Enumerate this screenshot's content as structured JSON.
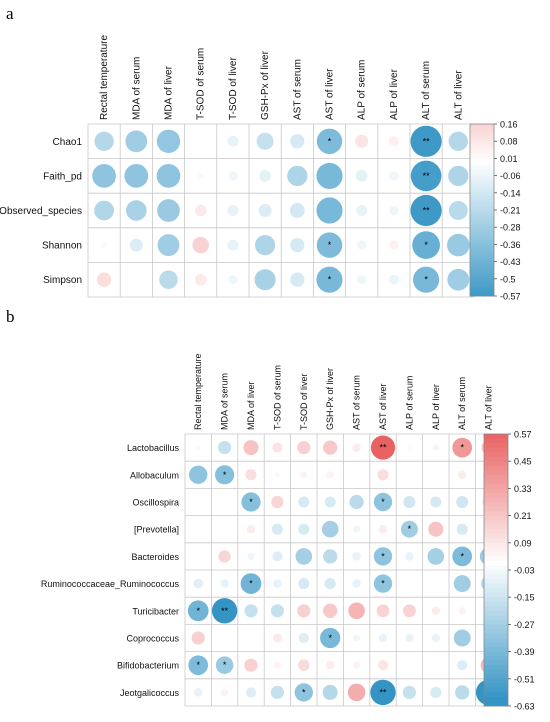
{
  "figure": {
    "panel_a_label": "a",
    "panel_b_label": "b"
  },
  "chart_data": [
    {
      "panel": "a",
      "type": "heatmap",
      "columns": [
        "Rectal temperature",
        "MDA of serum",
        "MDA of liver",
        "T-SOD of serum",
        "T-SOD of liver",
        "GSH-Px of liver",
        "AST of serum",
        "AST of liver",
        "ALP of serum",
        "ALP of liver",
        "ALT of serum",
        "ALT of liver"
      ],
      "rows": [
        "Chao1",
        "Faith_pd",
        "Observed_species",
        "Shannon",
        "Simpson"
      ],
      "values": [
        [
          -0.22,
          -0.28,
          -0.32,
          0.0,
          -0.07,
          -0.17,
          -0.12,
          -0.38,
          0.1,
          0.06,
          -0.57,
          -0.22
        ],
        [
          -0.33,
          -0.33,
          -0.33,
          -0.02,
          -0.05,
          -0.08,
          -0.24,
          -0.4,
          -0.08,
          -0.05,
          -0.55,
          -0.24
        ],
        [
          -0.23,
          -0.25,
          -0.3,
          0.08,
          -0.07,
          -0.1,
          -0.13,
          -0.4,
          -0.07,
          -0.05,
          -0.57,
          -0.21
        ],
        [
          0.02,
          -0.1,
          -0.28,
          0.16,
          -0.07,
          -0.24,
          -0.12,
          -0.38,
          -0.05,
          0.05,
          -0.45,
          -0.3
        ],
        [
          0.12,
          0.0,
          -0.2,
          0.08,
          -0.05,
          -0.26,
          -0.12,
          -0.4,
          -0.05,
          -0.06,
          -0.4,
          -0.28
        ]
      ],
      "significance": [
        [
          "",
          "",
          "",
          "",
          "",
          "",
          "",
          "*",
          "",
          "",
          "**",
          ""
        ],
        [
          "",
          "",
          "",
          "",
          "",
          "",
          "",
          "",
          "",
          "",
          "**",
          ""
        ],
        [
          "",
          "",
          "",
          "",
          "",
          "",
          "",
          "",
          "",
          "",
          "**",
          ""
        ],
        [
          "",
          "",
          "",
          "",
          "",
          "",
          "",
          "*",
          "",
          "",
          "*",
          ""
        ],
        [
          "",
          "",
          "",
          "",
          "",
          "",
          "",
          "*",
          "",
          "",
          "*",
          ""
        ]
      ],
      "colorbar": {
        "ticks": [
          "0.16",
          "0.08",
          "0.01",
          "-0.06",
          "-0.14",
          "-0.21",
          "-0.28",
          "-0.36",
          "-0.43",
          "-0.5",
          "-0.57"
        ],
        "range": [
          -0.57,
          0.16
        ]
      }
    },
    {
      "panel": "b",
      "type": "heatmap",
      "columns": [
        "Rectal temperature",
        "MDA of serum",
        "MDA of liver",
        "T-SOD of serum",
        "T-SOD of liver",
        "GSH-Px of liver",
        "AST of serum",
        "AST of liver",
        "ALP of serum",
        "ALP of liver",
        "ALT of serum",
        "ALT of liver"
      ],
      "rows": [
        "Lactobacillus",
        "Allobaculum",
        "Oscillospira",
        "[Prevotella]",
        "Bacteroides",
        "Ruminococcaceae_Ruminococcus",
        "Turicibacter",
        "Coprococcus",
        "Bifidobacterium",
        "Jeotgalicoccus"
      ],
      "values": [
        [
          0.03,
          -0.17,
          0.22,
          0.1,
          0.17,
          0.2,
          0.07,
          0.57,
          0.02,
          -0.04,
          0.38,
          0.2
        ],
        [
          -0.33,
          -0.36,
          0.12,
          0.03,
          0.05,
          0.05,
          0.0,
          0.12,
          0.0,
          0.0,
          0.07,
          0.12
        ],
        [
          0.0,
          0.0,
          -0.36,
          0.15,
          -0.12,
          -0.12,
          -0.2,
          -0.33,
          -0.14,
          -0.12,
          -0.14,
          -0.14
        ],
        [
          0.0,
          0.0,
          0.07,
          -0.12,
          -0.12,
          -0.27,
          -0.05,
          0.07,
          -0.28,
          0.22,
          -0.12,
          0.0
        ],
        [
          0.0,
          0.15,
          -0.05,
          -0.1,
          -0.27,
          -0.2,
          -0.07,
          -0.33,
          -0.07,
          -0.27,
          -0.38,
          -0.3
        ],
        [
          -0.09,
          -0.07,
          -0.42,
          -0.07,
          -0.12,
          -0.12,
          -0.07,
          -0.33,
          0.0,
          0.0,
          -0.28,
          -0.22
        ],
        [
          -0.42,
          -0.63,
          -0.17,
          -0.17,
          0.17,
          0.2,
          0.27,
          0.16,
          0.16,
          0.07,
          0.05,
          0.05
        ],
        [
          0.17,
          0.0,
          0.0,
          0.08,
          -0.1,
          -0.4,
          -0.05,
          -0.07,
          -0.07,
          -0.07,
          -0.28,
          0.0
        ],
        [
          -0.38,
          -0.3,
          0.17,
          0.05,
          0.13,
          0.07,
          0.05,
          0.1,
          0.0,
          0.0,
          -0.1,
          0.25
        ],
        [
          -0.07,
          0.05,
          -0.1,
          -0.17,
          -0.33,
          -0.22,
          0.3,
          -0.63,
          -0.17,
          -0.12,
          -0.2,
          -0.63
        ]
      ],
      "significance": [
        [
          "",
          "",
          "",
          "",
          "",
          "",
          "",
          "**",
          "",
          "",
          "*",
          ""
        ],
        [
          "",
          "*",
          "",
          "",
          "",
          "",
          "",
          "",
          "",
          "",
          "",
          ""
        ],
        [
          "",
          "",
          "*",
          "",
          "",
          "",
          "",
          "*",
          "",
          "",
          "",
          ""
        ],
        [
          "",
          "",
          "",
          "",
          "",
          "",
          "",
          "",
          "*",
          "",
          "",
          ""
        ],
        [
          "",
          "",
          "",
          "",
          "",
          "",
          "",
          "*",
          "",
          "",
          "*",
          ""
        ],
        [
          "",
          "",
          "*",
          "",
          "",
          "",
          "",
          "*",
          "",
          "",
          "",
          ""
        ],
        [
          "*",
          "**",
          "",
          "",
          "",
          "",
          "",
          "",
          "",
          "",
          "",
          ""
        ],
        [
          "",
          "",
          "",
          "",
          "",
          "*",
          "",
          "",
          "",
          "",
          "",
          ""
        ],
        [
          "*",
          "*",
          "",
          "",
          "",
          "",
          "",
          "",
          "",
          "",
          "",
          ""
        ],
        [
          "",
          "",
          "",
          "",
          "*",
          "",
          "",
          "**",
          "",
          "",
          "",
          "**"
        ]
      ],
      "colorbar": {
        "ticks": [
          "0.57",
          "0.45",
          "0.33",
          "0.21",
          "0.09",
          "-0.03",
          "-0.15",
          "-0.27",
          "-0.39",
          "-0.51",
          "-0.63"
        ],
        "range": [
          -0.63,
          0.57
        ]
      }
    }
  ]
}
